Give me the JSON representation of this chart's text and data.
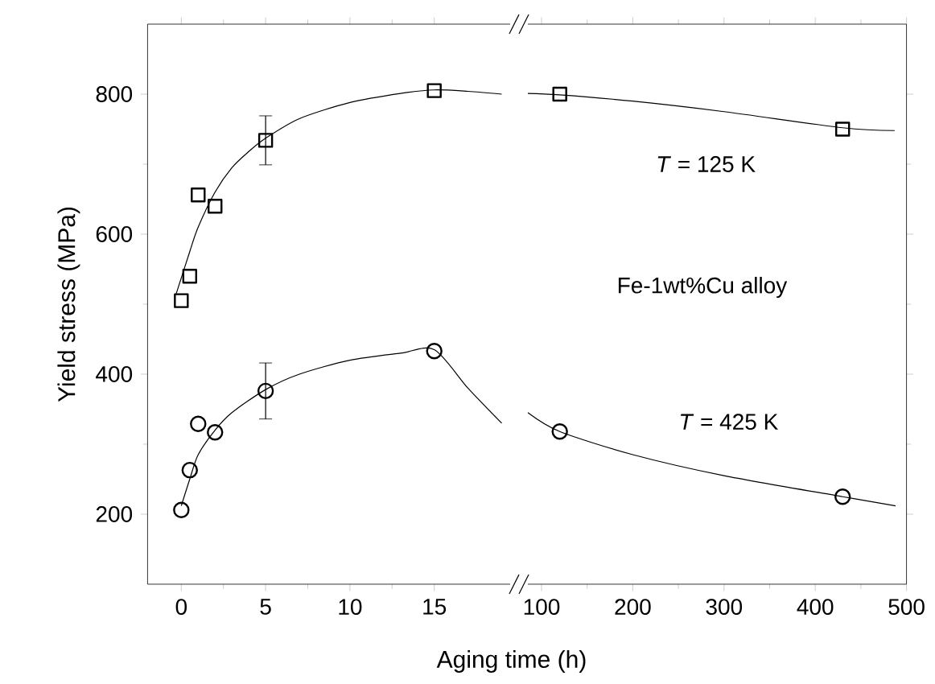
{
  "chart_data": [
    {
      "type": "scatter",
      "ylabel": "Yield stress (MPa)",
      "xlabel": "Aging time (h)",
      "xlim": [
        -2,
        19.5
      ],
      "xticks": [
        0,
        5,
        10,
        15
      ],
      "ylim": [
        100,
        900
      ],
      "yticks": [
        200,
        400,
        600,
        800
      ],
      "tick_labels": "xy",
      "series": [
        {
          "marker": "square",
          "color": "#000000",
          "x": [
            0,
            0.5,
            1,
            2,
            5,
            15
          ],
          "values": [
            505,
            540,
            656,
            640,
            734,
            805
          ],
          "errors": [
            null,
            null,
            null,
            null,
            35,
            null
          ]
        },
        {
          "marker": "circle",
          "color": "#000000",
          "x": [
            0,
            0.5,
            1,
            2,
            5,
            15
          ],
          "values": [
            206,
            263,
            329,
            317,
            376,
            433
          ],
          "errors": [
            null,
            null,
            null,
            null,
            40,
            null
          ]
        },
        {
          "type": "line",
          "marker": "none",
          "color": "#000000",
          "x": [
            -0.3,
            0.5,
            1,
            2,
            3,
            4,
            5,
            7,
            10,
            13,
            15,
            17,
            19
          ],
          "values": [
            515,
            575,
            610,
            660,
            695,
            718,
            737,
            765,
            788,
            801,
            806,
            804,
            800
          ]
        },
        {
          "type": "line",
          "marker": "none",
          "color": "#000000",
          "x": [
            0,
            0.5,
            1,
            2,
            3,
            5,
            7,
            10,
            13,
            15,
            17,
            19
          ],
          "values": [
            212,
            250,
            285,
            320,
            345,
            378,
            400,
            420,
            430,
            435,
            380,
            330
          ]
        }
      ]
    },
    {
      "type": "scatter",
      "xlim": [
        85,
        500
      ],
      "xticks": [
        100,
        200,
        300,
        400,
        500
      ],
      "ylim": [
        100,
        900
      ],
      "yticks": [
        200,
        400,
        600,
        800
      ],
      "tick_labels": "x",
      "annotations": [
        "*T* = 125 K",
        "Fe-1wt%Cu alloy",
        "*T* = 425 K"
      ],
      "series": [
        {
          "marker": "square",
          "color": "#000000",
          "x": [
            120,
            430
          ],
          "values": [
            800,
            750
          ]
        },
        {
          "marker": "circle",
          "color": "#000000",
          "x": [
            120,
            430
          ],
          "values": [
            318,
            225
          ]
        },
        {
          "type": "line",
          "marker": "none",
          "color": "#000000",
          "x": [
            85,
            120,
            200,
            300,
            430,
            487
          ],
          "values": [
            801,
            799,
            790,
            775,
            752,
            748
          ]
        },
        {
          "type": "line",
          "marker": "none",
          "color": "#000000",
          "x": [
            85,
            120,
            200,
            300,
            430,
            488
          ],
          "values": [
            345,
            318,
            285,
            255,
            225,
            212
          ]
        }
      ]
    }
  ]
}
